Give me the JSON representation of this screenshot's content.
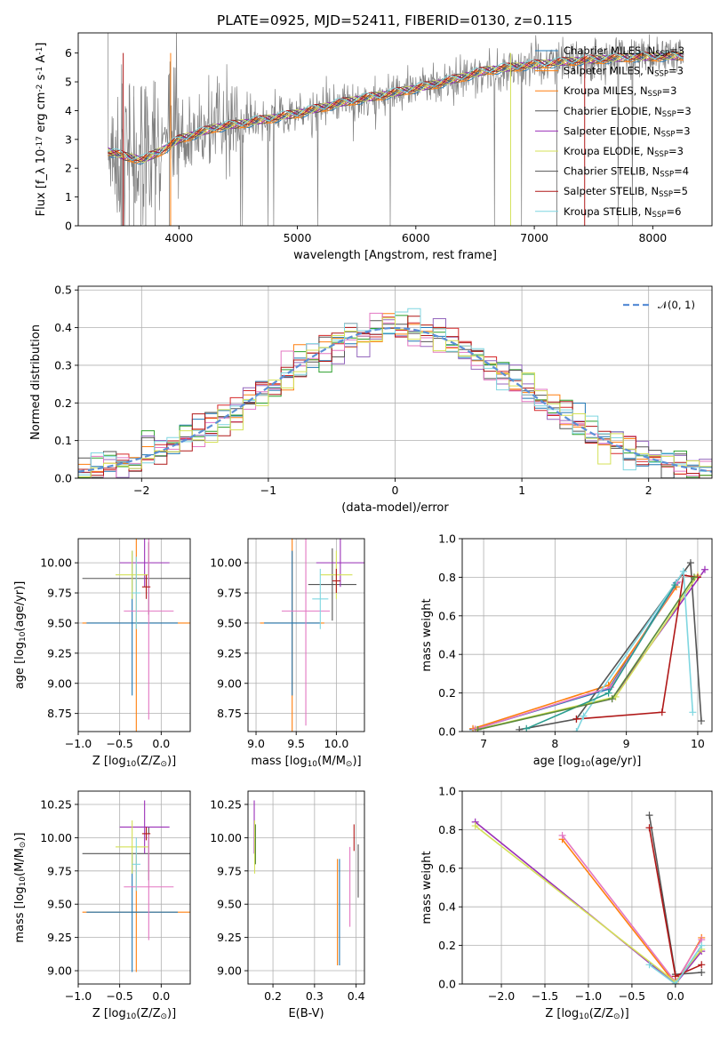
{
  "chart_data": [
    {
      "id": "spectrum",
      "type": "line",
      "title": "PLATE=0925, MJD=52411, FIBERID=0130, z=0.115",
      "xlabel": "wavelength [Angstrom, rest frame]",
      "ylabel": "Flux [f_λ 10^-17 erg cm^-2 s^-1 A^-1]",
      "xlim": [
        3150,
        8500
      ],
      "ylim": [
        0,
        6.7
      ],
      "xticks": [
        4000,
        5000,
        6000,
        7000,
        8000
      ],
      "yticks": [
        0,
        1,
        2,
        3,
        4,
        5,
        6
      ],
      "grid": false,
      "legend_position": "top-right",
      "legend": [
        {
          "name": "Chabrier MILES, N_SSP=3",
          "color": "#1f77b4"
        },
        {
          "name": "Salpeter MILES, N_SSP=3",
          "color": "#ff7f0e"
        },
        {
          "name": "Kroupa MILES, N_SSP=3",
          "color": "#ff7f0e"
        },
        {
          "name": "Chabrier ELODIE, N_SSP=3",
          "color": "#555555"
        },
        {
          "name": "Salpeter ELODIE, N_SSP=3",
          "color": "#9b30b8"
        },
        {
          "name": "Kroupa ELODIE, N_SSP=3",
          "color": "#d4e157"
        },
        {
          "name": "Chabrier STELIB, N_SSP=4",
          "color": "#555555"
        },
        {
          "name": "Salpeter STELIB, N_SSP=5",
          "color": "#b01818"
        },
        {
          "name": "Kroupa STELIB, N_SSP=6",
          "color": "#7fd6e0"
        }
      ],
      "continuum": [
        [
          3400,
          2.6
        ],
        [
          3550,
          2.4
        ],
        [
          3700,
          2.3
        ],
        [
          3850,
          2.6
        ],
        [
          4000,
          3.0
        ],
        [
          4300,
          3.4
        ],
        [
          4600,
          3.6
        ],
        [
          5000,
          3.9
        ],
        [
          5400,
          4.3
        ],
        [
          5800,
          4.6
        ],
        [
          6200,
          4.95
        ],
        [
          6600,
          5.4
        ],
        [
          7000,
          5.6
        ],
        [
          7400,
          5.75
        ],
        [
          7800,
          5.85
        ],
        [
          8260,
          5.9
        ]
      ]
    },
    {
      "id": "residuals",
      "type": "line",
      "xlabel": "(data-model)/error",
      "ylabel": "Normed distribution",
      "xlim": [
        -2.5,
        2.5
      ],
      "ylim": [
        0,
        0.51
      ],
      "xticks": [
        -2,
        -1,
        0,
        1,
        2
      ],
      "yticks": [
        0.0,
        0.1,
        0.2,
        0.3,
        0.4,
        0.5
      ],
      "grid": true,
      "legend_position": "top-right",
      "legend": [
        {
          "name": "𝒩(0, 1)",
          "color": "#5b8fd6"
        }
      ],
      "bin_width": 0.1
    },
    {
      "id": "age_vs_Z",
      "type": "scatter",
      "xlabel": "Z [log10(Z/Z⊙)]",
      "ylabel": "age  [log10(age/yr)]",
      "xlim": [
        -1.0,
        0.35
      ],
      "ylim": [
        8.6,
        10.2
      ],
      "xticks": [
        -1.0,
        -0.5,
        0.0
      ],
      "yticks": [
        8.75,
        9.0,
        9.25,
        9.5,
        9.75,
        10.0
      ],
      "grid": true,
      "points": [
        {
          "x": -0.3,
          "y": 9.5,
          "xerr": 0.65,
          "yerr": 0.9,
          "color": "#ff7f0e"
        },
        {
          "x": -0.35,
          "y": 9.5,
          "xerr": 0.55,
          "yerr": 0.6,
          "color": "#1f77b4"
        },
        {
          "x": -0.15,
          "y": 9.87,
          "xerr": 0.8,
          "yerr": 0.3,
          "color": "#555555"
        },
        {
          "x": -0.2,
          "y": 10.0,
          "xerr": 0.3,
          "yerr": 0.2,
          "color": "#9b30b8"
        },
        {
          "x": -0.35,
          "y": 9.9,
          "xerr": 0.2,
          "yerr": 0.2,
          "color": "#d4e157"
        },
        {
          "x": -0.15,
          "y": 9.6,
          "xerr": 0.3,
          "yerr": 0.9,
          "color": "#e377c2"
        },
        {
          "x": -0.18,
          "y": 9.8,
          "xerr": 0.05,
          "yerr": 0.1,
          "color": "#b01818"
        },
        {
          "x": -0.3,
          "y": 9.75,
          "xerr": 0.05,
          "yerr": 0.3,
          "color": "#7fd6e0"
        }
      ]
    },
    {
      "id": "age_vs_mass",
      "type": "scatter",
      "xlabel": "mass [log10(M/M⊙)]",
      "xlim": [
        8.9,
        10.35
      ],
      "ylim": [
        8.6,
        10.2
      ],
      "xticks": [
        9.0,
        9.5,
        10.0
      ],
      "yticks": [
        8.75,
        9.0,
        9.25,
        9.5,
        9.75,
        10.0
      ],
      "grid": true,
      "points": [
        {
          "x": 9.45,
          "y": 9.5,
          "xerr": 0.4,
          "yerr": 0.9,
          "color": "#ff7f0e"
        },
        {
          "x": 9.45,
          "y": 9.5,
          "xerr": 0.35,
          "yerr": 0.6,
          "color": "#1f77b4"
        },
        {
          "x": 9.95,
          "y": 9.82,
          "xerr": 0.3,
          "yerr": 0.3,
          "color": "#555555"
        },
        {
          "x": 10.05,
          "y": 10.0,
          "xerr": 0.3,
          "yerr": 0.2,
          "color": "#9b30b8"
        },
        {
          "x": 10.0,
          "y": 9.9,
          "xerr": 0.2,
          "yerr": 0.2,
          "color": "#d4e157"
        },
        {
          "x": 9.62,
          "y": 9.6,
          "xerr": 0.3,
          "yerr": 0.95,
          "color": "#e377c2"
        },
        {
          "x": 10.0,
          "y": 9.85,
          "xerr": 0.05,
          "yerr": 0.1,
          "color": "#b01818"
        },
        {
          "x": 9.8,
          "y": 9.7,
          "xerr": 0.1,
          "yerr": 0.25,
          "color": "#7fd6e0"
        }
      ]
    },
    {
      "id": "weight_vs_age",
      "type": "line",
      "xlabel": "age  [log10(age/yr)]",
      "ylabel": "mass weight",
      "xlim": [
        6.7,
        10.2
      ],
      "ylim": [
        0,
        1.0
      ],
      "xticks": [
        7,
        8,
        9,
        10
      ],
      "yticks": [
        0.0,
        0.2,
        0.4,
        0.6,
        0.8,
        1.0
      ],
      "grid": true,
      "series": [
        {
          "color": "#1f77b4",
          "x": [
            6.85,
            8.75,
            9.7
          ],
          "y": [
            0.01,
            0.22,
            0.77
          ]
        },
        {
          "color": "#ff7f0e",
          "x": [
            6.85,
            8.75,
            9.7
          ],
          "y": [
            0.015,
            0.24,
            0.75
          ]
        },
        {
          "color": "#555555",
          "x": [
            7.5,
            8.3,
            9.9,
            10.05
          ],
          "y": [
            0.01,
            0.065,
            0.875,
            0.055
          ]
        },
        {
          "color": "#9b30b8",
          "x": [
            6.9,
            8.8,
            10.1
          ],
          "y": [
            0.01,
            0.17,
            0.84
          ]
        },
        {
          "color": "#d4e157",
          "x": [
            6.9,
            8.85,
            10.0
          ],
          "y": [
            0.01,
            0.18,
            0.81
          ]
        },
        {
          "color": "#e377c2",
          "x": [
            6.88,
            8.78,
            9.72
          ],
          "y": [
            0.012,
            0.23,
            0.775
          ]
        },
        {
          "color": "#b01818",
          "x": [
            8.3,
            9.5,
            9.8,
            10.0
          ],
          "y": [
            0.065,
            0.1,
            0.81,
            0.8
          ]
        },
        {
          "color": "#7fd6e0",
          "x": [
            8.3,
            8.4,
            9.8,
            9.93
          ],
          "y": [
            0.0,
            0.08,
            0.83,
            0.1
          ]
        },
        {
          "color": "#2a9d8f",
          "x": [
            7.6,
            8.75,
            9.68
          ],
          "y": [
            0.015,
            0.2,
            0.76
          ]
        },
        {
          "color": "#5a8a3a",
          "x": [
            6.92,
            8.8,
            9.95
          ],
          "y": [
            0.01,
            0.17,
            0.8
          ]
        }
      ]
    },
    {
      "id": "mass_vs_Z",
      "type": "scatter",
      "xlabel": "Z [log10(Z/Z⊙)]",
      "ylabel": "mass [log10(M/M⊙)]",
      "xlim": [
        -1.0,
        0.35
      ],
      "ylim": [
        8.9,
        10.35
      ],
      "xticks": [
        -1.0,
        -0.5,
        0.0
      ],
      "yticks": [
        9.0,
        9.25,
        9.5,
        9.75,
        10.0,
        10.25
      ],
      "grid": true,
      "points": [
        {
          "x": -0.3,
          "y": 9.44,
          "xerr": 0.65,
          "yerr": 0.45,
          "color": "#ff7f0e"
        },
        {
          "x": -0.35,
          "y": 9.44,
          "xerr": 0.55,
          "yerr": 0.45,
          "color": "#1f77b4"
        },
        {
          "x": -0.15,
          "y": 9.88,
          "xerr": 0.8,
          "yerr": 0.2,
          "color": "#555555"
        },
        {
          "x": -0.2,
          "y": 10.08,
          "xerr": 0.3,
          "yerr": 0.2,
          "color": "#9b30b8"
        },
        {
          "x": -0.35,
          "y": 9.93,
          "xerr": 0.2,
          "yerr": 0.2,
          "color": "#d4e157"
        },
        {
          "x": -0.15,
          "y": 9.63,
          "xerr": 0.3,
          "yerr": 0.4,
          "color": "#e377c2"
        },
        {
          "x": -0.18,
          "y": 10.03,
          "xerr": 0.05,
          "yerr": 0.05,
          "color": "#b01818"
        },
        {
          "x": -0.3,
          "y": 9.8,
          "xerr": 0.05,
          "yerr": 0.2,
          "color": "#7fd6e0"
        }
      ]
    },
    {
      "id": "mass_vs_ebv",
      "type": "scatter",
      "xlabel": "E(B-V)",
      "xlim": [
        0.14,
        0.42
      ],
      "ylim": [
        8.9,
        10.35
      ],
      "xticks": [
        0.2,
        0.3,
        0.4
      ],
      "yticks": [
        9.0,
        9.25,
        9.5,
        9.75,
        10.0,
        10.25
      ],
      "grid": true,
      "points": [
        {
          "x": 0.155,
          "y": 10.08,
          "yerr": 0.2,
          "color": "#9b30b8"
        },
        {
          "x": 0.156,
          "y": 9.93,
          "yerr": 0.2,
          "color": "#d4e157"
        },
        {
          "x": 0.158,
          "y": 9.95,
          "yerr": 0.15,
          "color": "#5a8a3a"
        },
        {
          "x": 0.355,
          "y": 9.44,
          "yerr": 0.4,
          "color": "#ff7f0e"
        },
        {
          "x": 0.36,
          "y": 9.44,
          "yerr": 0.4,
          "color": "#1f77b4"
        },
        {
          "x": 0.385,
          "y": 9.63,
          "yerr": 0.3,
          "color": "#e377c2"
        },
        {
          "x": 0.395,
          "y": 10.0,
          "yerr": 0.1,
          "color": "#b01818"
        },
        {
          "x": 0.405,
          "y": 9.75,
          "yerr": 0.2,
          "color": "#555555"
        }
      ]
    },
    {
      "id": "weight_vs_Z",
      "type": "line",
      "xlabel": "Z [log10(Z/Z⊙)]",
      "ylabel": "mass weight",
      "xlim": [
        -2.45,
        0.42
      ],
      "ylim": [
        0,
        1.0
      ],
      "xticks": [
        -2.0,
        -1.5,
        -1.0,
        -0.5,
        0.0
      ],
      "yticks": [
        0.0,
        0.2,
        0.4,
        0.6,
        0.8,
        1.0
      ],
      "grid": true,
      "series": [
        {
          "color": "#ff7f0e",
          "x": [
            -1.3,
            0.0,
            0.3
          ],
          "y": [
            0.75,
            0.0,
            0.24
          ]
        },
        {
          "color": "#e377c2",
          "x": [
            -1.3,
            0.0,
            0.3
          ],
          "y": [
            0.77,
            0.01,
            0.23
          ]
        },
        {
          "color": "#9b30b8",
          "x": [
            -2.3,
            0.0,
            0.3
          ],
          "y": [
            0.84,
            0.0,
            0.17
          ]
        },
        {
          "color": "#d4e157",
          "x": [
            -2.3,
            0.0,
            0.3
          ],
          "y": [
            0.82,
            0.01,
            0.18
          ]
        },
        {
          "color": "#555555",
          "x": [
            -0.3,
            0.0,
            0.3
          ],
          "y": [
            0.875,
            0.05,
            0.06
          ]
        },
        {
          "color": "#b01818",
          "x": [
            -0.3,
            0.0,
            0.3
          ],
          "y": [
            0.81,
            0.04,
            0.1
          ]
        },
        {
          "color": "#7fd6e0",
          "x": [
            -0.3,
            0.0,
            0.3
          ],
          "y": [
            0.1,
            0.0,
            0.2
          ]
        }
      ]
    }
  ]
}
